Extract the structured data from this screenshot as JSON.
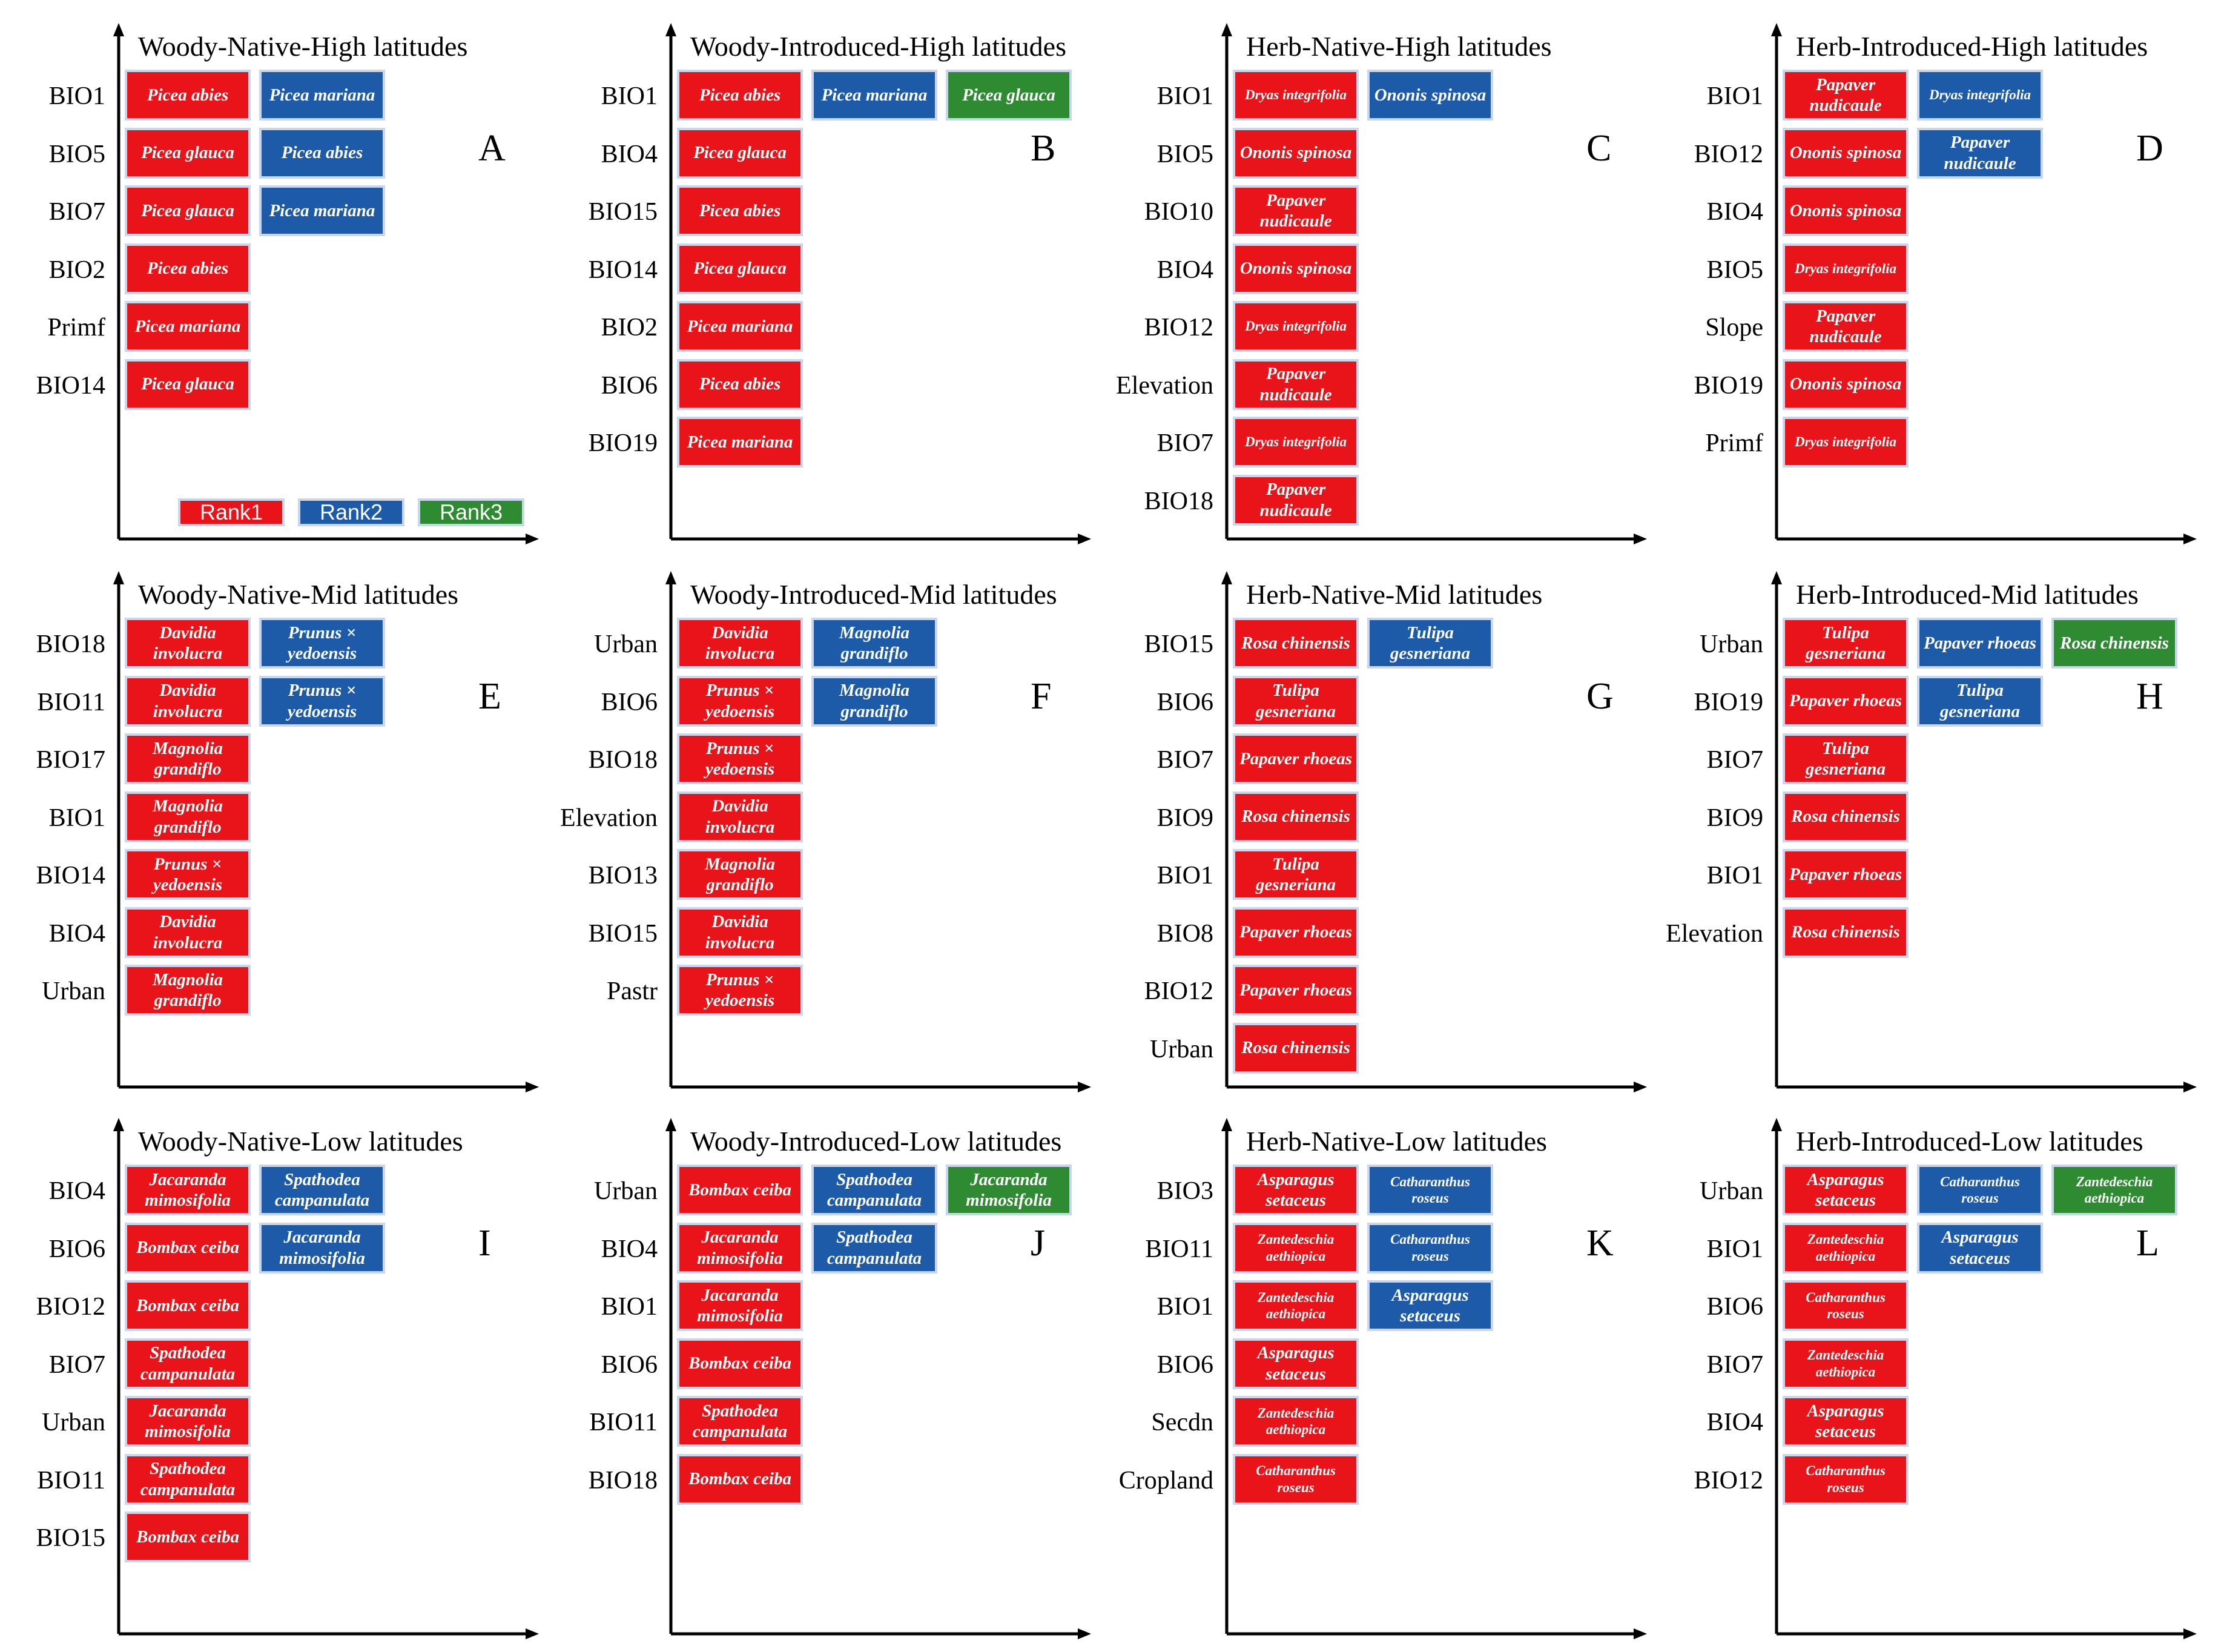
{
  "colors": {
    "rank1": "#e8141a",
    "rank2": "#1d5aa8",
    "rank3": "#2e8b32",
    "border": "#c9d7ee"
  },
  "legend": [
    "Rank1",
    "Rank2",
    "Rank3"
  ],
  "panels": [
    {
      "letter": "A",
      "title": "Woody-Native-High  latitudes",
      "rows": [
        {
          "var": "BIO1",
          "species": [
            "Picea abies",
            "Picea mariana"
          ]
        },
        {
          "var": "BIO5",
          "species": [
            "Picea glauca",
            "Picea abies"
          ]
        },
        {
          "var": "BIO7",
          "species": [
            "Picea glauca",
            "Picea mariana"
          ]
        },
        {
          "var": "BIO2",
          "species": [
            "Picea abies"
          ]
        },
        {
          "var": "Primf",
          "species": [
            "Picea mariana"
          ]
        },
        {
          "var": "BIO14",
          "species": [
            "Picea glauca"
          ]
        }
      ]
    },
    {
      "letter": "B",
      "title": "Woody-Introduced-High  latitudes",
      "rows": [
        {
          "var": "BIO1",
          "species": [
            "Picea abies",
            "Picea mariana",
            "Picea glauca"
          ]
        },
        {
          "var": "BIO4",
          "species": [
            "Picea glauca"
          ]
        },
        {
          "var": "BIO15",
          "species": [
            "Picea abies"
          ]
        },
        {
          "var": "BIO14",
          "species": [
            "Picea glauca"
          ]
        },
        {
          "var": "BIO2",
          "species": [
            "Picea mariana"
          ]
        },
        {
          "var": "BIO6",
          "species": [
            "Picea abies"
          ]
        },
        {
          "var": "BIO19",
          "species": [
            "Picea mariana"
          ]
        }
      ]
    },
    {
      "letter": "C",
      "title": "Herb-Native-High  latitudes",
      "rows": [
        {
          "var": "BIO1",
          "species": [
            "Dryas integrifolia",
            "Ononis spinosa"
          ]
        },
        {
          "var": "BIO5",
          "species": [
            "Ononis spinosa"
          ]
        },
        {
          "var": "BIO10",
          "species": [
            "Papaver nudicaule"
          ]
        },
        {
          "var": "BIO4",
          "species": [
            "Ononis spinosa"
          ]
        },
        {
          "var": "BIO12",
          "species": [
            "Dryas integrifolia"
          ]
        },
        {
          "var": "Elevation",
          "species": [
            "Papaver nudicaule"
          ]
        },
        {
          "var": "BIO7",
          "species": [
            "Dryas integrifolia"
          ]
        },
        {
          "var": "BIO18",
          "species": [
            "Papaver nudicaule"
          ]
        }
      ]
    },
    {
      "letter": "D",
      "title": "Herb-Introduced-High  latitudes",
      "rows": [
        {
          "var": "BIO1",
          "species": [
            "Papaver nudicaule",
            "Dryas integrifolia"
          ]
        },
        {
          "var": "BIO12",
          "species": [
            "Ononis spinosa",
            "Papaver nudicaule"
          ]
        },
        {
          "var": "BIO4",
          "species": [
            "Ononis spinosa"
          ]
        },
        {
          "var": "BIO5",
          "species": [
            "Dryas integrifolia"
          ]
        },
        {
          "var": "Slope",
          "species": [
            "Papaver nudicaule"
          ]
        },
        {
          "var": "BIO19",
          "species": [
            "Ononis spinosa"
          ]
        },
        {
          "var": "Primf",
          "species": [
            "Dryas integrifolia"
          ]
        }
      ]
    },
    {
      "letter": "E",
      "title": "Woody-Native-Mid  latitudes",
      "rows": [
        {
          "var": "BIO18",
          "species": [
            "Davidia involucra",
            "Prunus × yedoensis"
          ]
        },
        {
          "var": "BIO11",
          "species": [
            "Davidia involucra",
            "Prunus × yedoensis"
          ]
        },
        {
          "var": "BIO17",
          "species": [
            "Magnolia grandiflo"
          ]
        },
        {
          "var": "BIO1",
          "species": [
            "Magnolia grandiflo"
          ]
        },
        {
          "var": "BIO14",
          "species": [
            "Prunus × yedoensis"
          ]
        },
        {
          "var": "BIO4",
          "species": [
            "Davidia involucra"
          ]
        },
        {
          "var": "Urban",
          "species": [
            "Magnolia grandiflo"
          ]
        }
      ]
    },
    {
      "letter": "F",
      "title": "Woody-Introduced-Mid  latitudes",
      "rows": [
        {
          "var": "Urban",
          "species": [
            "Davidia involucra",
            "Magnolia grandiflo"
          ]
        },
        {
          "var": "BIO6",
          "species": [
            "Prunus × yedoensis",
            "Magnolia grandiflo"
          ]
        },
        {
          "var": "BIO18",
          "species": [
            "Prunus × yedoensis"
          ]
        },
        {
          "var": "Elevation",
          "species": [
            "Davidia involucra"
          ]
        },
        {
          "var": "BIO13",
          "species": [
            "Magnolia grandiflo"
          ]
        },
        {
          "var": "BIO15",
          "species": [
            "Davidia involucra"
          ]
        },
        {
          "var": "Pastr",
          "species": [
            "Prunus × yedoensis"
          ]
        }
      ]
    },
    {
      "letter": "G",
      "title": "Herb-Native-Mid  latitudes",
      "rows": [
        {
          "var": "BIO15",
          "species": [
            "Rosa chinensis",
            "Tulipa gesneriana"
          ]
        },
        {
          "var": "BIO6",
          "species": [
            "Tulipa gesneriana"
          ]
        },
        {
          "var": "BIO7",
          "species": [
            "Papaver rhoeas"
          ]
        },
        {
          "var": "BIO9",
          "species": [
            "Rosa chinensis"
          ]
        },
        {
          "var": "BIO1",
          "species": [
            "Tulipa gesneriana"
          ]
        },
        {
          "var": "BIO8",
          "species": [
            "Papaver rhoeas"
          ]
        },
        {
          "var": "BIO12",
          "species": [
            "Papaver rhoeas"
          ]
        },
        {
          "var": "Urban",
          "species": [
            "Rosa chinensis"
          ]
        }
      ]
    },
    {
      "letter": "H",
      "title": "Herb-Introduced-Mid  latitudes",
      "rows": [
        {
          "var": "Urban",
          "species": [
            "Tulipa gesneriana",
            "Papaver rhoeas",
            "Rosa chinensis"
          ]
        },
        {
          "var": "BIO19",
          "species": [
            "Papaver rhoeas",
            "Tulipa gesneriana"
          ]
        },
        {
          "var": "BIO7",
          "species": [
            "Tulipa gesneriana"
          ]
        },
        {
          "var": "BIO9",
          "species": [
            "Rosa chinensis"
          ]
        },
        {
          "var": "BIO1",
          "species": [
            "Papaver rhoeas"
          ]
        },
        {
          "var": "Elevation",
          "species": [
            "Rosa chinensis"
          ]
        }
      ]
    },
    {
      "letter": "I",
      "title": "Woody-Native-Low  latitudes",
      "rows": [
        {
          "var": "BIO4",
          "species": [
            "Jacaranda mimosifolia",
            "Spathodea campanulata"
          ]
        },
        {
          "var": "BIO6",
          "species": [
            "Bombax ceiba",
            "Jacaranda mimosifolia"
          ]
        },
        {
          "var": "BIO12",
          "species": [
            "Bombax ceiba"
          ]
        },
        {
          "var": "BIO7",
          "species": [
            "Spathodea campanulata"
          ]
        },
        {
          "var": "Urban",
          "species": [
            "Jacaranda mimosifolia"
          ]
        },
        {
          "var": "BIO11",
          "species": [
            "Spathodea campanulata"
          ]
        },
        {
          "var": "BIO15",
          "species": [
            "Bombax ceiba"
          ]
        }
      ]
    },
    {
      "letter": "J",
      "title": "Woody-Introduced-Low  latitudes",
      "rows": [
        {
          "var": "Urban",
          "species": [
            "Bombax ceiba",
            "Spathodea campanulata",
            "Jacaranda mimosifolia"
          ]
        },
        {
          "var": "BIO4",
          "species": [
            "Jacaranda mimosifolia",
            "Spathodea campanulata"
          ]
        },
        {
          "var": "BIO1",
          "species": [
            "Jacaranda mimosifolia"
          ]
        },
        {
          "var": "BIO6",
          "species": [
            "Bombax ceiba"
          ]
        },
        {
          "var": "BIO11",
          "species": [
            "Spathodea campanulata"
          ]
        },
        {
          "var": "BIO18",
          "species": [
            "Bombax ceiba"
          ]
        }
      ]
    },
    {
      "letter": "K",
      "title": "Herb-Native-Low  latitudes",
      "rows": [
        {
          "var": "BIO3",
          "species": [
            "Asparagus setaceus",
            "Catharanthus roseus"
          ]
        },
        {
          "var": "BIO11",
          "species": [
            "Zantedeschia aethiopica",
            "Catharanthus roseus"
          ]
        },
        {
          "var": "BIO1",
          "species": [
            "Zantedeschia aethiopica",
            "Asparagus setaceus"
          ]
        },
        {
          "var": "BIO6",
          "species": [
            "Asparagus setaceus"
          ]
        },
        {
          "var": "Secdn",
          "species": [
            "Zantedeschia aethiopica"
          ]
        },
        {
          "var": "Cropland",
          "species": [
            "Catharanthus roseus"
          ]
        }
      ]
    },
    {
      "letter": "L",
      "title": "Herb-Introduced-Low  latitudes",
      "rows": [
        {
          "var": "Urban",
          "species": [
            "Asparagus setaceus",
            "Catharanthus roseus",
            "Zantedeschia aethiopica"
          ]
        },
        {
          "var": "BIO1",
          "species": [
            "Zantedeschia aethiopica",
            "Asparagus setaceus"
          ]
        },
        {
          "var": "BIO6",
          "species": [
            "Catharanthus roseus"
          ]
        },
        {
          "var": "BIO7",
          "species": [
            "Zantedeschia aethiopica"
          ]
        },
        {
          "var": "BIO4",
          "species": [
            "Asparagus setaceus"
          ]
        },
        {
          "var": "BIO12",
          "species": [
            "Catharanthus roseus"
          ]
        }
      ]
    }
  ]
}
